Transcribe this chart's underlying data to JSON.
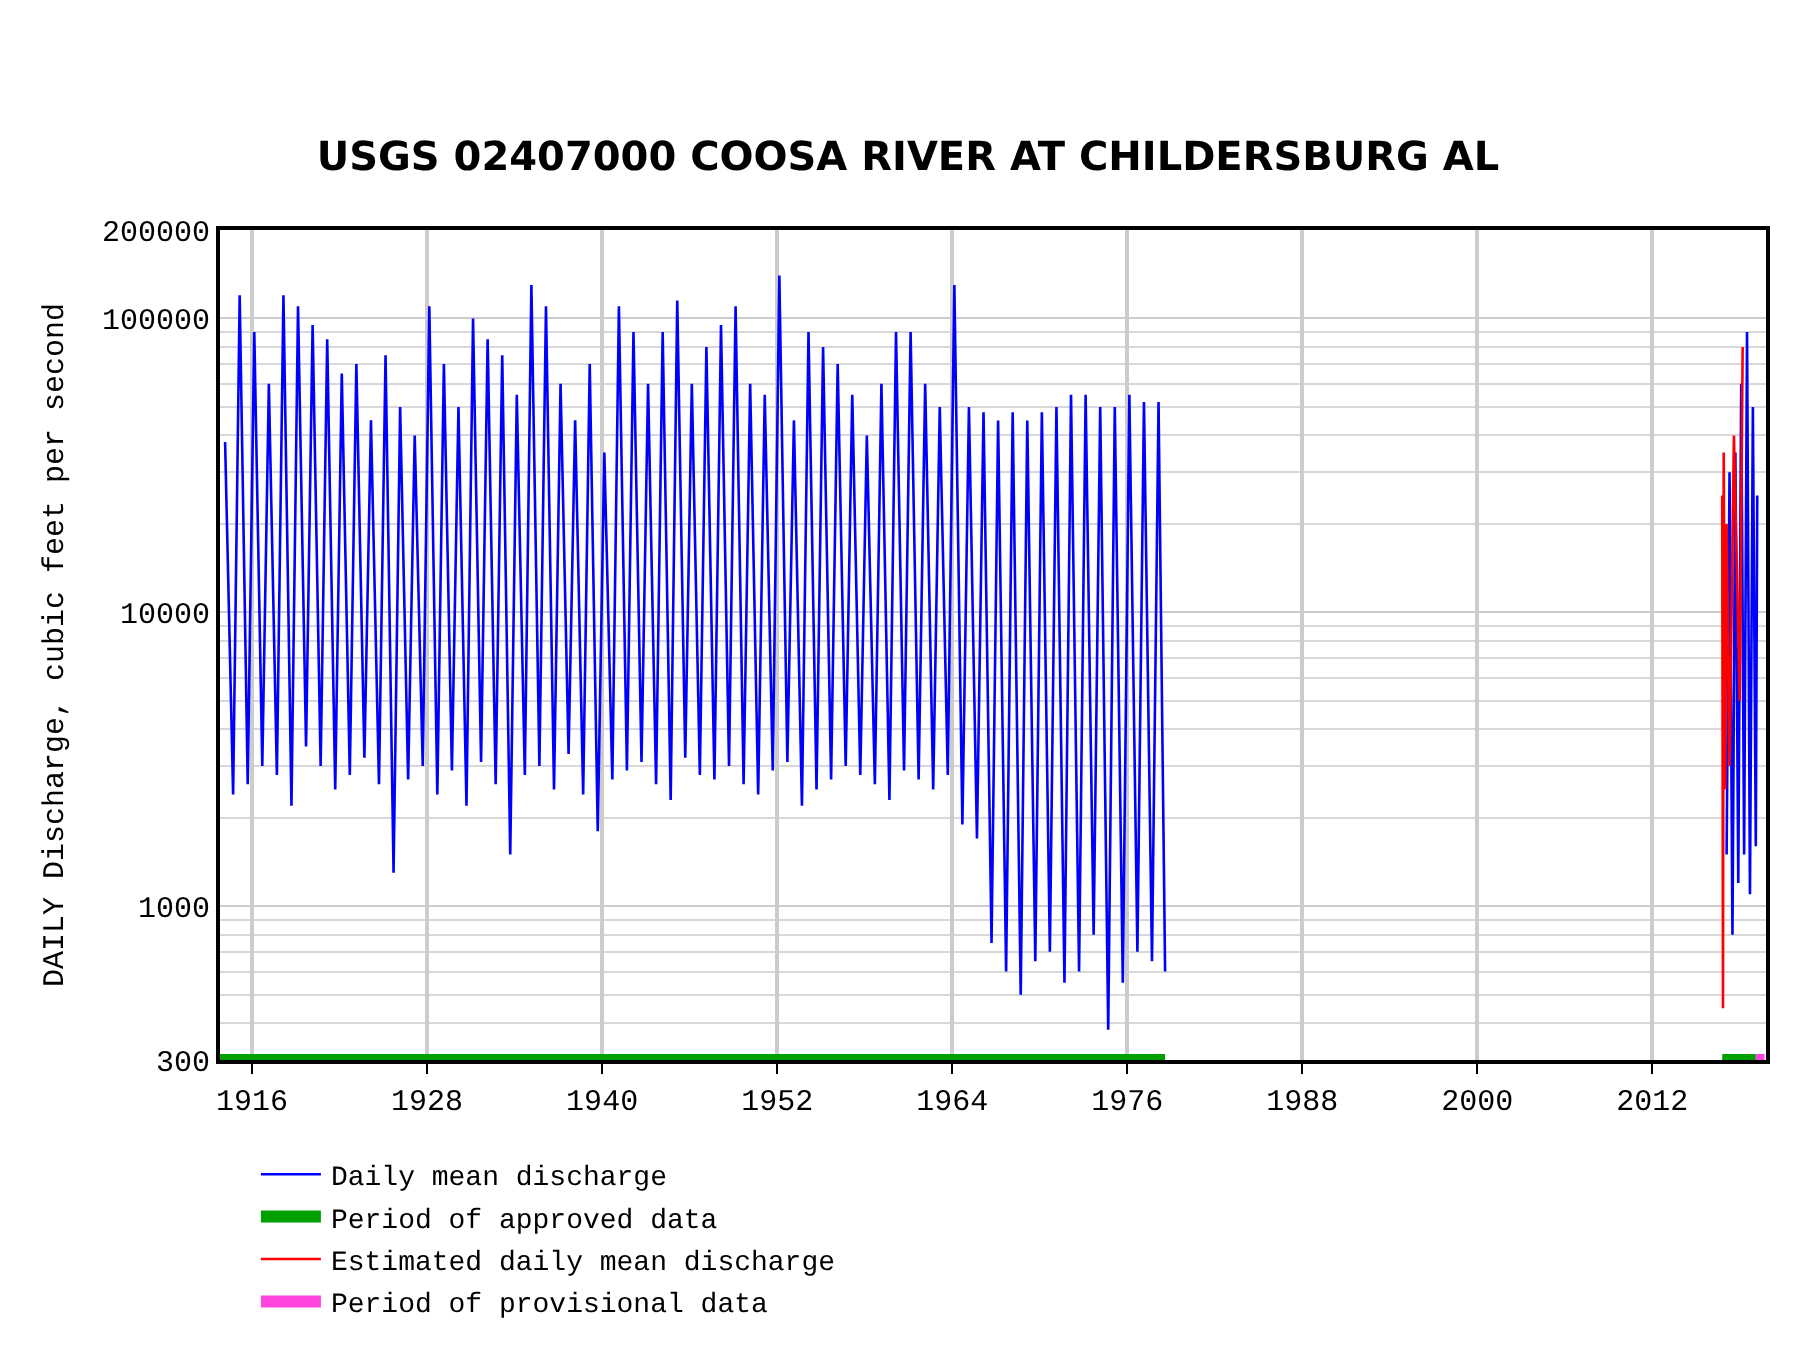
{
  "chart_data": {
    "type": "line",
    "title": "USGS 02407000 COOSA RIVER AT CHILDERSBURG AL",
    "ylabel": "DAILY Discharge, cubic feet per second",
    "log": "y",
    "grid": true,
    "legend": "bottom",
    "line_style": "solid",
    "marker": "none",
    "xlim": [
      1913.8,
      2019.8
    ],
    "xticks": [
      1916,
      1928,
      1940,
      1952,
      1964,
      1976,
      1988,
      2000,
      2012
    ],
    "ylim": [
      300,
      200000
    ],
    "yticks": [
      300,
      1000,
      10000,
      100000,
      200000
    ],
    "series": [
      {
        "name": "Daily mean discharge",
        "color": "#0000ff",
        "x": [
          1914.15,
          1914.7,
          1915.15,
          1915.7,
          1916.15,
          1916.7,
          1917.15,
          1917.7,
          1918.15,
          1918.7,
          1919.15,
          1919.7,
          1920.15,
          1920.7,
          1921.15,
          1921.7,
          1922.15,
          1922.7,
          1923.15,
          1923.7,
          1924.15,
          1924.7,
          1925.15,
          1925.7,
          1926.15,
          1926.7,
          1927.15,
          1927.7,
          1928.15,
          1928.7,
          1929.15,
          1929.7,
          1930.15,
          1930.7,
          1931.15,
          1931.7,
          1932.15,
          1932.7,
          1933.15,
          1933.7,
          1934.15,
          1934.7,
          1935.15,
          1935.7,
          1936.15,
          1936.7,
          1937.15,
          1937.7,
          1938.15,
          1938.7,
          1939.15,
          1939.7,
          1940.15,
          1940.7,
          1941.15,
          1941.7,
          1942.15,
          1942.7,
          1943.15,
          1943.7,
          1944.15,
          1944.7,
          1945.15,
          1945.7,
          1946.15,
          1946.7,
          1947.15,
          1947.7,
          1948.15,
          1948.7,
          1949.15,
          1949.7,
          1950.15,
          1950.7,
          1951.15,
          1951.7,
          1952.15,
          1952.7,
          1953.15,
          1953.7,
          1954.15,
          1954.7,
          1955.15,
          1955.7,
          1956.15,
          1956.7,
          1957.15,
          1957.7,
          1958.15,
          1958.7,
          1959.15,
          1959.7,
          1960.15,
          1960.7,
          1961.15,
          1961.7,
          1962.15,
          1962.7,
          1963.15,
          1963.7,
          1964.15,
          1964.7,
          1965.15,
          1965.7,
          1966.15,
          1966.7,
          1967.15,
          1967.7,
          1968.15,
          1968.7,
          1969.15,
          1969.7,
          1970.15,
          1970.7,
          1971.15,
          1971.7,
          1972.15,
          1972.7,
          1973.15,
          1973.7,
          1974.15,
          1974.7,
          1975.15,
          1975.7,
          1976.15,
          1976.7,
          1977.15,
          1977.7,
          1978.15,
          1978.6,
          1990,
          2017.1,
          2017.3,
          2017.5,
          2017.7,
          2017.9,
          2018.1,
          2018.3,
          2018.5,
          2018.7,
          2018.9,
          2019.1,
          2019.2
        ],
        "values": [
          38000,
          2400,
          120000,
          2600,
          90000,
          3000,
          60000,
          2800,
          120000,
          2200,
          110000,
          3500,
          95000,
          3000,
          85000,
          2500,
          65000,
          2800,
          70000,
          3200,
          45000,
          2600,
          75000,
          1300,
          50000,
          2700,
          40000,
          3000,
          110000,
          2400,
          70000,
          2900,
          50000,
          2200,
          100000,
          3100,
          85000,
          2600,
          75000,
          1500,
          55000,
          2800,
          130000,
          3000,
          110000,
          2500,
          60000,
          3300,
          45000,
          2400,
          70000,
          1800,
          35000,
          2700,
          110000,
          2900,
          90000,
          3100,
          60000,
          2600,
          90000,
          2300,
          115000,
          3200,
          60000,
          2800,
          80000,
          2700,
          95000,
          3000,
          110000,
          2600,
          60000,
          2400,
          55000,
          2900,
          140000,
          3100,
          45000,
          2200,
          90000,
          2500,
          80000,
          2700,
          70000,
          3000,
          55000,
          2800,
          40000,
          2600,
          60000,
          2300,
          90000,
          2900,
          90000,
          2700,
          60000,
          2500,
          50000,
          2800,
          130000,
          1900,
          50000,
          1700,
          48000,
          750,
          45000,
          600,
          48000,
          500,
          45000,
          650,
          48000,
          700,
          50000,
          550,
          55000,
          600,
          55000,
          800,
          50000,
          380,
          50000,
          550,
          55000,
          700,
          52000,
          650,
          52000,
          600,
          null,
          1500,
          30000,
          800,
          35000,
          1200,
          60000,
          1500,
          90000,
          1100,
          50000,
          1600,
          25000
        ]
      },
      {
        "name": "Period of approved data",
        "color": "#00a000",
        "type": "step",
        "x": [
          1913.8,
          1978.6,
          1990,
          2016.8,
          2019.1
        ],
        "values": [
          300,
          300,
          null,
          300,
          300
        ]
      },
      {
        "name": "Estimated daily mean discharge",
        "color": "#ff0000",
        "x": [
          2016.8,
          2016.85,
          2016.9,
          2017.0,
          2017.1,
          2017.3,
          2017.6,
          2018.0,
          2018.2
        ],
        "values": [
          25000,
          450,
          35000,
          2500,
          20000,
          3000,
          40000,
          5000,
          80000
        ]
      },
      {
        "name": "Period of provisional data",
        "color": "#ff44dd",
        "type": "step",
        "x": [
          2019.1,
          2019.7
        ],
        "values": [
          300,
          300
        ]
      }
    ]
  }
}
